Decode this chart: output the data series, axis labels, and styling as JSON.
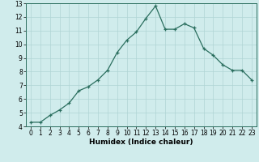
{
  "x": [
    0,
    1,
    2,
    3,
    4,
    5,
    6,
    7,
    8,
    9,
    10,
    11,
    12,
    13,
    14,
    15,
    16,
    17,
    18,
    19,
    20,
    21,
    22,
    23
  ],
  "y": [
    4.3,
    4.3,
    4.8,
    5.2,
    5.7,
    6.6,
    6.9,
    7.4,
    8.1,
    9.4,
    10.3,
    10.9,
    11.9,
    12.8,
    11.1,
    11.1,
    11.5,
    11.2,
    9.7,
    9.2,
    8.5,
    8.1,
    8.1,
    7.4
  ],
  "xlim": [
    -0.5,
    23.5
  ],
  "ylim": [
    4,
    13
  ],
  "yticks": [
    4,
    5,
    6,
    7,
    8,
    9,
    10,
    11,
    12,
    13
  ],
  "xticks": [
    0,
    1,
    2,
    3,
    4,
    5,
    6,
    7,
    8,
    9,
    10,
    11,
    12,
    13,
    14,
    15,
    16,
    17,
    18,
    19,
    20,
    21,
    22,
    23
  ],
  "xlabel": "Humidex (Indice chaleur)",
  "line_color": "#2a6e5e",
  "marker": "+",
  "bg_color": "#d0ecec",
  "grid_color": "#b0d4d4",
  "label_fontsize": 6.5,
  "tick_fontsize": 5.5,
  "marker_size": 3.5
}
